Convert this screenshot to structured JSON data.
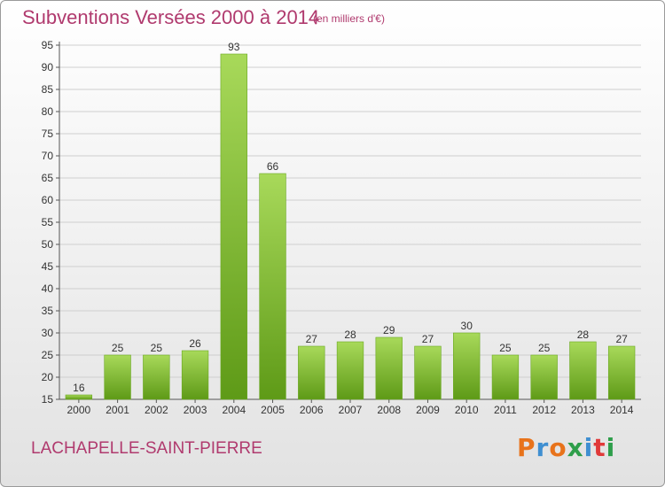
{
  "header": {
    "title": "Subventions Versées 2000 à 2014",
    "unit": "(en milliers d'€)"
  },
  "footer": {
    "commune": "LACHAPELLE-SAINT-PIERRE",
    "logo_text": "Proxiti",
    "logo_colors": [
      "#e8731b",
      "#3f8fd1",
      "#e8731b",
      "#2e9e4a",
      "#3f8fd1",
      "#e03a3a",
      "#2e9e4a"
    ]
  },
  "colors": {
    "bar_light": "#a8d95a",
    "bar_dark": "#5e9a17",
    "accent_text": "#b03a6e"
  },
  "chart_data": {
    "type": "bar",
    "categories": [
      "2000",
      "2001",
      "2002",
      "2003",
      "2004",
      "2005",
      "2006",
      "2007",
      "2008",
      "2009",
      "2010",
      "2011",
      "2012",
      "2013",
      "2014"
    ],
    "values": [
      16,
      25,
      25,
      26,
      93,
      66,
      27,
      28,
      29,
      27,
      30,
      25,
      25,
      28,
      27
    ],
    "title": "Subventions Versées 2000 à 2014",
    "ylim": [
      15,
      95
    ],
    "yticks": [
      15,
      20,
      25,
      30,
      35,
      40,
      45,
      50,
      55,
      60,
      65,
      70,
      75,
      80,
      85,
      90,
      95
    ],
    "grid": "horizontal"
  }
}
